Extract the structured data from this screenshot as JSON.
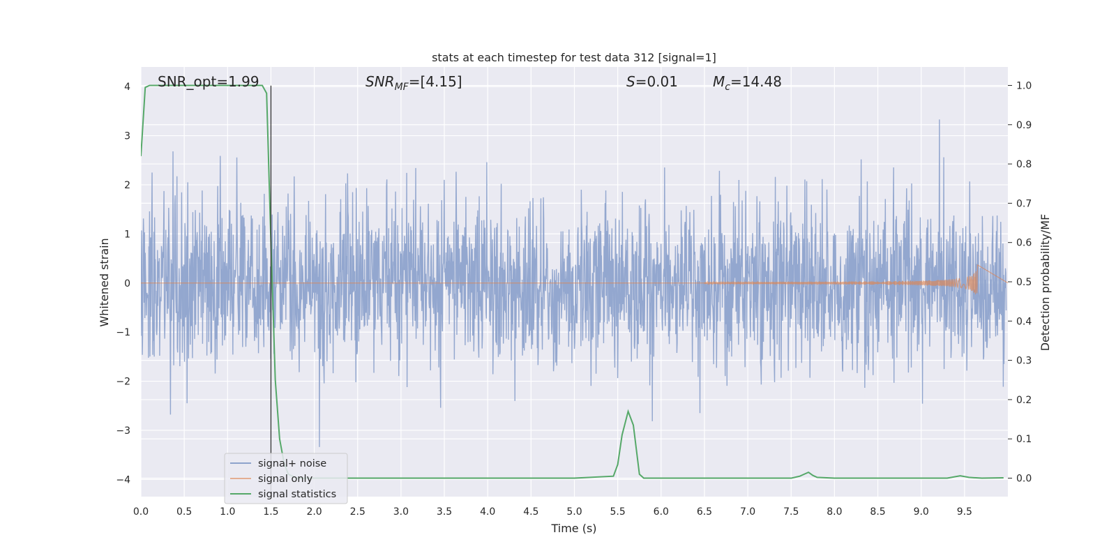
{
  "chart_data": {
    "type": "line",
    "title": "stats at each timestep for test data 312 [signal=1]",
    "xlabel": "Time (s)",
    "ylabel_left": "Whitened strain",
    "ylabel_right": "Detection probability/MF",
    "xlim": [
      0.0,
      10.0
    ],
    "ylim_left": [
      -4.35,
      4.4
    ],
    "ylim_right": [
      -0.047,
      1.047
    ],
    "x_ticks": [
      0.0,
      0.5,
      1.0,
      1.5,
      2.0,
      2.5,
      3.0,
      3.5,
      4.0,
      4.5,
      5.0,
      5.5,
      6.0,
      6.5,
      7.0,
      7.5,
      8.0,
      8.5,
      9.0,
      9.5
    ],
    "x_tick_labels": [
      "0.0",
      "0.5",
      "1.0",
      "1.5",
      "2.0",
      "2.5",
      "3.0",
      "3.5",
      "4.0",
      "4.5",
      "5.0",
      "5.5",
      "6.0",
      "6.5",
      "7.0",
      "7.5",
      "8.0",
      "8.5",
      "9.0",
      "9.5"
    ],
    "y_left_ticks": [
      4,
      3,
      2,
      1,
      0,
      -1,
      -2,
      -3,
      -4
    ],
    "y_left_tick_labels": [
      "4",
      "3",
      "2",
      "1",
      "0",
      "−1",
      "−2",
      "−3",
      "−4"
    ],
    "y_right_ticks": [
      1.0,
      0.9,
      0.8,
      0.7,
      0.6,
      0.5,
      0.4,
      0.3,
      0.2,
      0.1,
      0.0
    ],
    "y_right_tick_labels": [
      "1.0",
      "0.9",
      "0.8",
      "0.7",
      "0.6",
      "0.5",
      "0.4",
      "0.3",
      "0.2",
      "0.1",
      "0.0"
    ],
    "grid": true,
    "annotations": {
      "snr_opt": "SNR_opt=1.99",
      "snr_mf_sym": "SNR",
      "snr_mf_sub": "MF",
      "snr_mf_val": "=[4.15]",
      "s_sym": "S",
      "s_val": "=0.01",
      "mc_sym": "M",
      "mc_sub": "c",
      "mc_val": "=14.48"
    },
    "vline_x": 1.5,
    "legend": {
      "placement": "lower-left",
      "entries": [
        "signal+ noise",
        "signal only",
        "signal statistics"
      ]
    },
    "colors": {
      "noise": "#8ea3cc",
      "signal_only": "#dd8452",
      "statistics": "#55a868",
      "background": "#eaeaf2",
      "grid": "#ffffff",
      "vline": "#333333"
    },
    "series": [
      {
        "name": "signal statistics",
        "axis": "right",
        "x": [
          0.0,
          0.05,
          0.1,
          0.2,
          0.4,
          0.6,
          0.8,
          1.0,
          1.2,
          1.3,
          1.4,
          1.45,
          1.5,
          1.55,
          1.6,
          1.65,
          1.7,
          1.8,
          2.0,
          3.0,
          4.0,
          5.0,
          5.45,
          5.5,
          5.55,
          5.62,
          5.68,
          5.75,
          5.8,
          5.9,
          6.5,
          7.0,
          7.5,
          7.6,
          7.65,
          7.7,
          7.75,
          7.8,
          8.0,
          9.0,
          9.3,
          9.45,
          9.55,
          9.7,
          9.95
        ],
        "y": [
          0.82,
          0.995,
          1.0,
          1.0,
          1.0,
          1.0,
          1.0,
          1.0,
          1.0,
          1.0,
          1.0,
          0.98,
          0.6,
          0.25,
          0.1,
          0.04,
          0.01,
          0.0,
          0.0,
          0.0,
          0.0,
          0.0,
          0.005,
          0.035,
          0.11,
          0.17,
          0.135,
          0.01,
          0.0,
          0.0,
          0.0,
          0.0,
          0.0,
          0.005,
          0.01,
          0.015,
          0.007,
          0.002,
          0.0,
          0.0,
          0.0,
          0.006,
          0.002,
          0.0,
          0.001
        ]
      },
      {
        "name": "signal only",
        "axis": "left",
        "chirp_start": 6.5,
        "chirp_end": 9.65,
        "amplitude_peak": 0.4
      },
      {
        "name": "signal+ noise",
        "axis": "left",
        "samples": 2400,
        "std": 0.85,
        "seed": 312
      }
    ]
  }
}
